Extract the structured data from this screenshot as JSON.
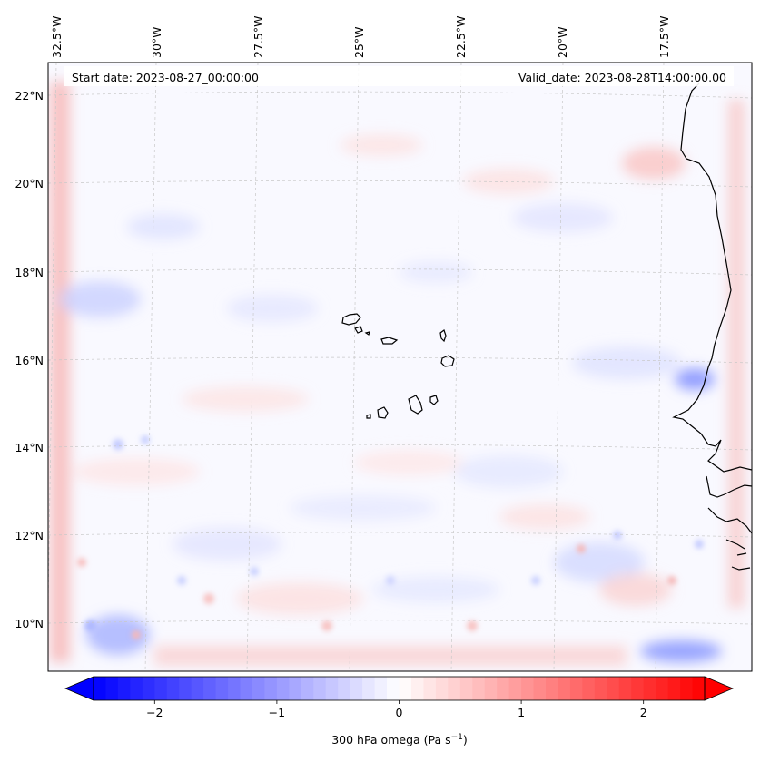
{
  "header": {
    "start_date": "Start date: 2023-08-27_00:00:00",
    "valid_date": "Valid_date: 2023-08-28T14:00:00.00"
  },
  "axes": {
    "top_longitude_labels": [
      "32.5°W",
      "30°W",
      "27.5°W",
      "25°W",
      "22.5°W",
      "20°W",
      "17.5°W"
    ],
    "left_latitude_labels": [
      "22°N",
      "20°N",
      "18°N",
      "16°N",
      "14°N",
      "12°N",
      "10°N"
    ]
  },
  "colorbar": {
    "ticks": [
      "−2",
      "−1",
      "0",
      "1",
      "2"
    ],
    "tick_values": [
      -2,
      -1,
      0,
      1,
      2
    ],
    "range": [
      -2.5,
      2.5
    ],
    "label_text": "300 hPa omega (Pa s",
    "label_exponent": "−1",
    "label_close": ")",
    "colors": {
      "min": "#0000ff",
      "mid": "#ffffff",
      "max": "#ff0000"
    }
  },
  "map": {
    "field_name": "300 hPa omega",
    "coastline_color": "#000000",
    "gridline_color": "#c8c8c8"
  }
}
